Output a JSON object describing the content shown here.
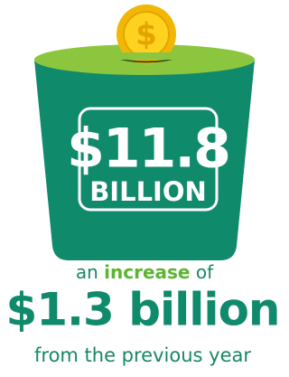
{
  "amount": "$11.8",
  "amount_unit": "BILLION",
  "increase_line": {
    "before": "an",
    "highlight": "increase",
    "after": "of"
  },
  "increase_amount": "$1.3 billion",
  "footer": "from the previous year"
}
